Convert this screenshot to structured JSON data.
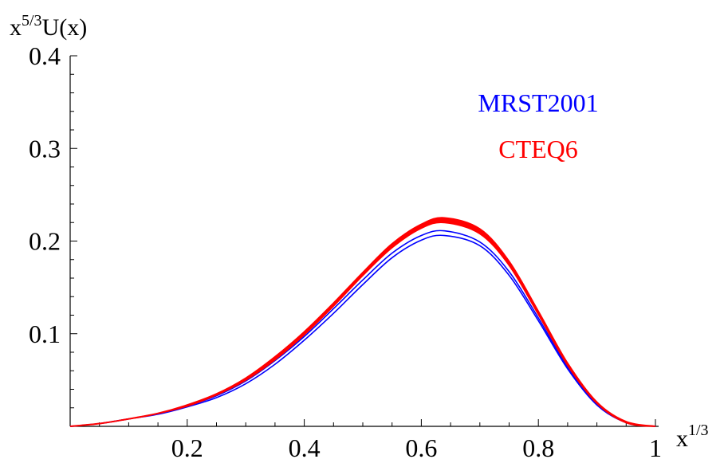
{
  "chart_data": {
    "type": "line",
    "xlabel": {
      "base": "x",
      "sup": "1/3"
    },
    "ylabel": {
      "base_pre": "x",
      "sup": "5/3",
      "base_post": "U(x)"
    },
    "xlim": [
      0,
      1
    ],
    "ylim": [
      0,
      0.4
    ],
    "xticks": [
      0.2,
      0.4,
      0.6,
      0.8,
      1
    ],
    "xtick_labels": [
      "0.2",
      "0.4",
      "0.6",
      "0.8",
      "1"
    ],
    "yticks": [
      0.1,
      0.2,
      0.3,
      0.4
    ],
    "ytick_labels": [
      "0.1",
      "0.2",
      "0.3",
      "0.4"
    ],
    "grid": false,
    "legend_position": "top-right",
    "legend": [
      {
        "label": "MRST2001",
        "color": "#0000ff"
      },
      {
        "label": "CTEQ6",
        "color": "#ff0000"
      }
    ],
    "series": [
      {
        "name": "MRST2001",
        "color": "#0000ff",
        "band": true,
        "x": [
          0.0,
          0.05,
          0.1,
          0.15,
          0.2,
          0.25,
          0.3,
          0.35,
          0.4,
          0.45,
          0.5,
          0.55,
          0.6,
          0.64,
          0.7,
          0.75,
          0.8,
          0.85,
          0.9,
          0.95,
          1.0
        ],
        "y_upper": [
          0.0,
          0.003,
          0.008,
          0.014,
          0.022,
          0.033,
          0.049,
          0.071,
          0.097,
          0.127,
          0.158,
          0.187,
          0.206,
          0.211,
          0.199,
          0.167,
          0.117,
          0.064,
          0.024,
          0.004,
          0.0
        ],
        "y_lower": [
          0.0,
          0.003,
          0.008,
          0.013,
          0.021,
          0.031,
          0.046,
          0.067,
          0.093,
          0.122,
          0.153,
          0.182,
          0.201,
          0.206,
          0.195,
          0.163,
          0.114,
          0.062,
          0.023,
          0.004,
          0.0
        ]
      },
      {
        "name": "CTEQ6",
        "color": "#ff0000",
        "band": true,
        "x": [
          0.0,
          0.05,
          0.1,
          0.15,
          0.2,
          0.25,
          0.3,
          0.35,
          0.4,
          0.45,
          0.5,
          0.55,
          0.6,
          0.64,
          0.7,
          0.75,
          0.8,
          0.85,
          0.9,
          0.95,
          1.0
        ],
        "y_upper": [
          0.0,
          0.003,
          0.008,
          0.014,
          0.023,
          0.035,
          0.052,
          0.075,
          0.102,
          0.133,
          0.166,
          0.197,
          0.218,
          0.225,
          0.213,
          0.178,
          0.124,
          0.068,
          0.026,
          0.005,
          0.0
        ],
        "y_lower": [
          0.0,
          0.003,
          0.008,
          0.014,
          0.022,
          0.034,
          0.05,
          0.072,
          0.099,
          0.13,
          0.163,
          0.193,
          0.214,
          0.22,
          0.208,
          0.174,
          0.121,
          0.066,
          0.025,
          0.004,
          0.0
        ]
      }
    ]
  }
}
